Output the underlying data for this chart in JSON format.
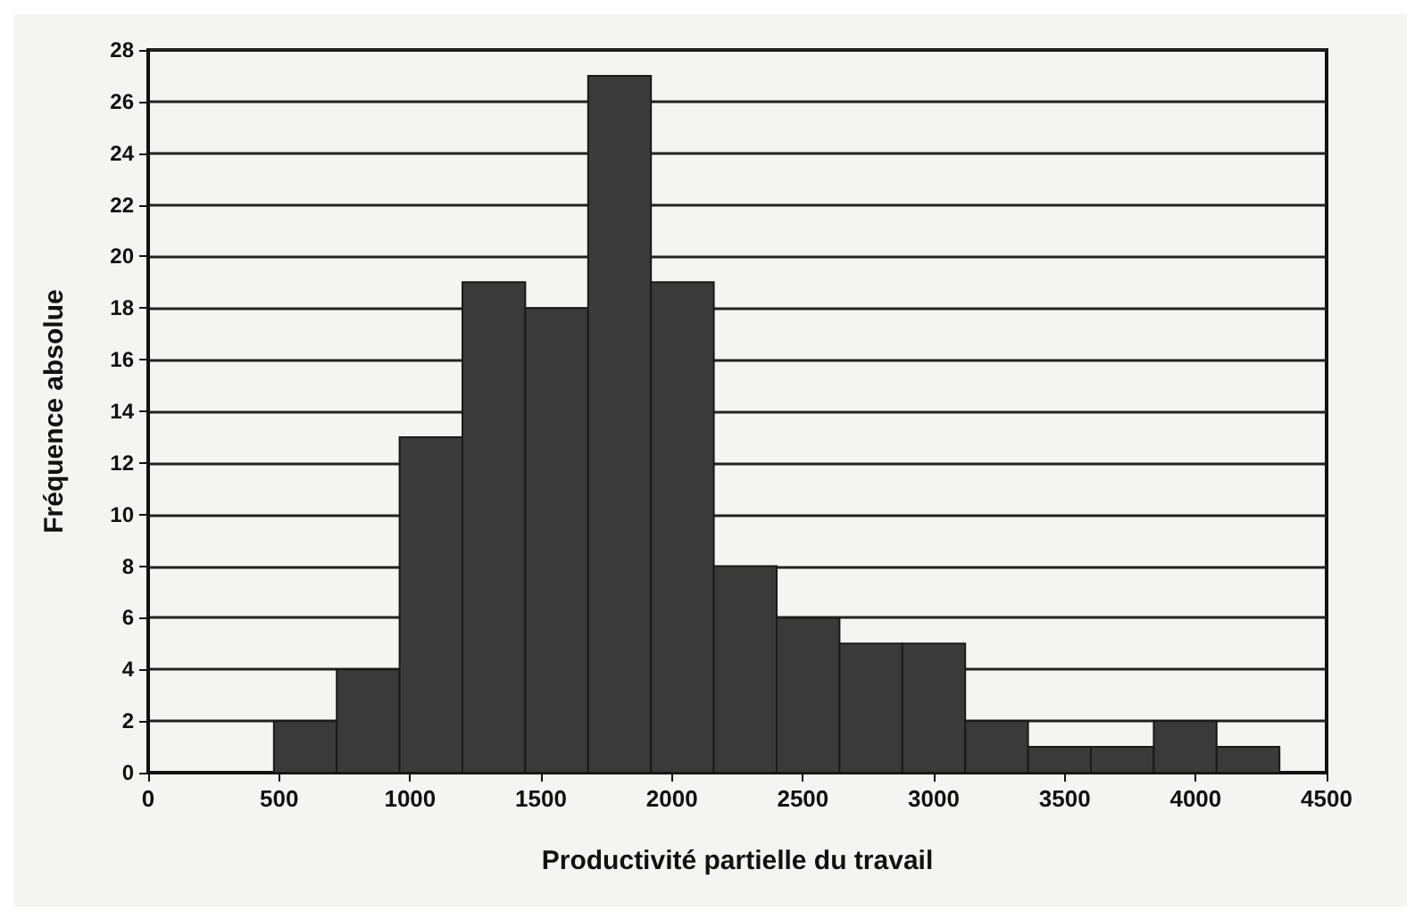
{
  "chart_data": {
    "type": "histogram",
    "xlabel": "Productivité partielle du travail",
    "ylabel": "Fréquence absolue",
    "bins": [
      480,
      720,
      960,
      1200,
      1440,
      1680,
      1920,
      2160,
      2400,
      2640,
      2880,
      3120,
      3360,
      3600,
      3840,
      4080,
      4320
    ],
    "values": [
      2,
      4,
      13,
      19,
      18,
      27,
      19,
      8,
      6,
      5,
      5,
      2,
      1,
      1,
      2,
      1
    ],
    "color": "#3a3a3a",
    "xlim": [
      0,
      4500
    ],
    "xticks": [
      0,
      500,
      1000,
      1500,
      2000,
      2500,
      3000,
      3500,
      4000,
      4500
    ],
    "ylim": [
      0,
      28
    ],
    "yticks": [
      0,
      2,
      4,
      6,
      8,
      10,
      12,
      14,
      16,
      18,
      20,
      22,
      24,
      26,
      28
    ],
    "grid": "y"
  }
}
